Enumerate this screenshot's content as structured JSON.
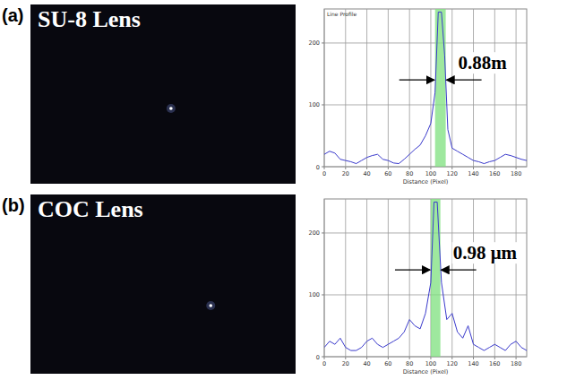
{
  "chart_data": [
    {
      "type": "line",
      "panel_label": "(a)",
      "image_title": "SU-8 Lens",
      "title": "Line Profile",
      "x_label": "Distance (Pixel)",
      "annotation": "0.88m",
      "color": "#3a3acc",
      "grid": true,
      "xlim": [
        0,
        190
      ],
      "ylim": [
        0,
        255
      ],
      "xticks": [
        0,
        20,
        40,
        60,
        80,
        100,
        120,
        140,
        160,
        180
      ],
      "yticks": [
        0,
        100,
        200
      ],
      "band": [
        104,
        114
      ],
      "x": [
        0,
        5,
        10,
        15,
        20,
        25,
        30,
        35,
        40,
        45,
        50,
        55,
        60,
        65,
        70,
        75,
        80,
        85,
        90,
        95,
        100,
        104,
        107,
        110,
        113,
        116,
        120,
        125,
        130,
        135,
        140,
        145,
        150,
        155,
        160,
        165,
        170,
        175,
        180,
        185,
        190
      ],
      "values": [
        20,
        25,
        22,
        12,
        10,
        8,
        5,
        10,
        15,
        18,
        20,
        12,
        10,
        6,
        5,
        12,
        20,
        28,
        35,
        50,
        70,
        120,
        250,
        250,
        180,
        60,
        30,
        25,
        20,
        15,
        10,
        8,
        5,
        8,
        10,
        15,
        20,
        18,
        15,
        12,
        10
      ]
    },
    {
      "type": "line",
      "panel_label": "(b)",
      "image_title": "COC Lens",
      "x_label": "Distance (Pixel)",
      "annotation": "0.98 μm",
      "color": "#3a3acc",
      "grid": true,
      "xlim": [
        0,
        190
      ],
      "ylim": [
        0,
        255
      ],
      "xticks": [
        0,
        20,
        40,
        60,
        80,
        100,
        120,
        140,
        160,
        180
      ],
      "yticks": [
        0,
        100,
        200
      ],
      "band": [
        100,
        109
      ],
      "x": [
        0,
        5,
        10,
        15,
        20,
        25,
        30,
        35,
        40,
        45,
        50,
        55,
        60,
        65,
        70,
        75,
        80,
        85,
        90,
        95,
        100,
        103,
        106,
        110,
        115,
        120,
        125,
        130,
        135,
        140,
        145,
        150,
        155,
        160,
        165,
        170,
        175,
        180,
        185,
        190
      ],
      "values": [
        15,
        25,
        20,
        30,
        15,
        10,
        10,
        15,
        25,
        30,
        20,
        15,
        20,
        25,
        30,
        40,
        60,
        50,
        45,
        70,
        120,
        250,
        250,
        120,
        60,
        70,
        40,
        30,
        50,
        20,
        15,
        10,
        15,
        20,
        15,
        10,
        20,
        25,
        15,
        10
      ]
    }
  ]
}
